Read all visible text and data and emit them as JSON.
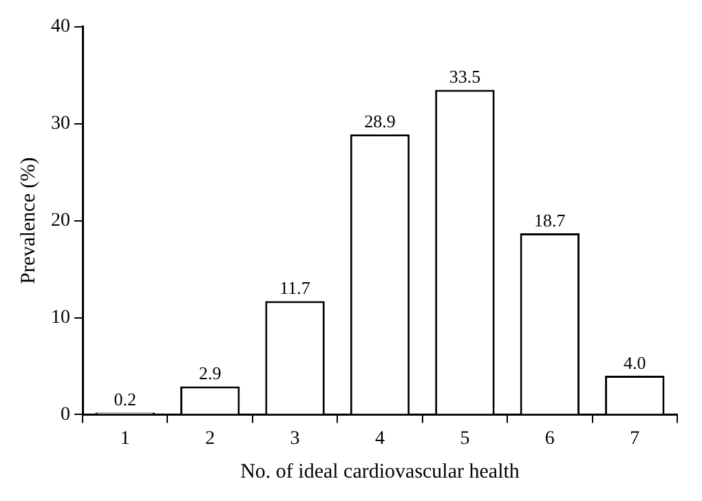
{
  "chart_data": {
    "type": "bar",
    "xlabel": "No. of ideal cardiovascular health",
    "ylabel": "Prevalence (%)",
    "categories": [
      "1",
      "2",
      "3",
      "4",
      "5",
      "6",
      "7"
    ],
    "values": [
      0.2,
      2.9,
      11.7,
      28.9,
      33.5,
      18.7,
      4.0
    ],
    "value_labels": [
      "0.2",
      "2.9",
      "11.7",
      "28.9",
      "33.5",
      "18.7",
      "4.0"
    ],
    "color": "#ffffff",
    "ylim": [
      0,
      40
    ],
    "yticks": [
      0,
      10,
      20,
      30,
      40
    ],
    "grid": false,
    "legend": false
  }
}
